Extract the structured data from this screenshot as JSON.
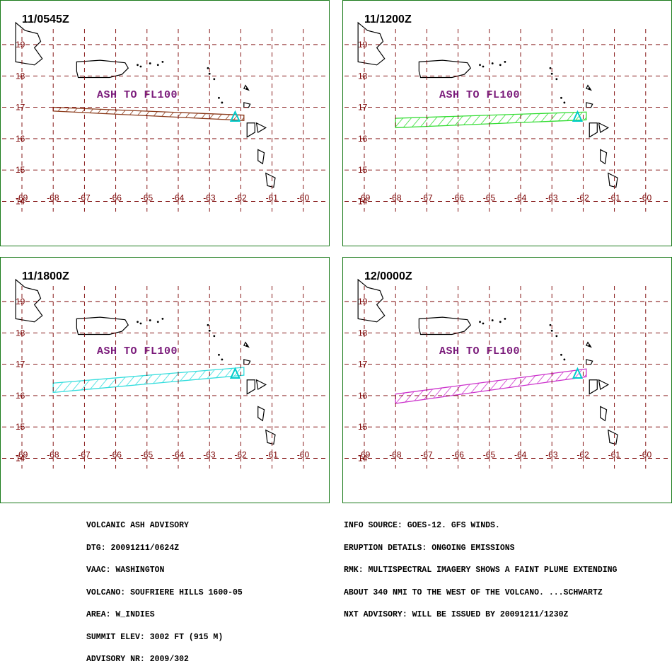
{
  "panels": [
    {
      "time": "11/0545Z",
      "ash_label": "ASH TO FL100",
      "plume_color": "#8b3a1a",
      "plume": [
        [
          -68.0,
          17.0
        ],
        [
          -68.0,
          16.88
        ],
        [
          -61.9,
          16.58
        ],
        [
          -61.9,
          16.75
        ]
      ]
    },
    {
      "time": "11/1200Z",
      "ash_label": "ASH TO FL100",
      "plume_color": "#33dd33",
      "plume": [
        [
          -68.0,
          16.65
        ],
        [
          -68.0,
          16.35
        ],
        [
          -61.9,
          16.6
        ],
        [
          -61.9,
          16.85
        ]
      ]
    },
    {
      "time": "11/1800Z",
      "ash_label": "ASH TO FL100",
      "plume_color": "#33dddd",
      "plume": [
        [
          -68.0,
          16.4
        ],
        [
          -68.0,
          16.1
        ],
        [
          -61.9,
          16.65
        ],
        [
          -61.9,
          16.9
        ]
      ]
    },
    {
      "time": "12/0000Z",
      "ash_label": "ASH TO FL100",
      "plume_color": "#cc33cc",
      "plume": [
        [
          -68.0,
          16.05
        ],
        [
          -68.0,
          15.75
        ],
        [
          -61.9,
          16.6
        ],
        [
          -61.9,
          16.85
        ]
      ]
    }
  ],
  "grid": {
    "lon_labels": [
      "-69",
      "-68",
      "-67",
      "-66",
      "-65",
      "-64",
      "-63",
      "-62",
      "-61",
      "-60"
    ],
    "lat_labels": [
      "19",
      "18",
      "17",
      "16",
      "15",
      "14"
    ],
    "grid_color": "#7a0000",
    "coast_color": "#000000",
    "volcano_color": "#00cccc"
  },
  "footer_left": [
    "VOLCANIC ASH ADVISORY",
    "DTG: 20091211/0624Z",
    "VAAC: WASHINGTON",
    "VOLCANO: SOUFRIERE HILLS 1600-05",
    "AREA: W_INDIES",
    "SUMMIT ELEV: 3002 FT (915 M)",
    "ADVISORY NR: 2009/302"
  ],
  "footer_right": [
    "INFO SOURCE: GOES-12. GFS WINDS.",
    "ERUPTION DETAILS: ONGOING EMISSIONS",
    "RMK: MULTISPECTRAL IMAGERY SHOWS A FAINT PLUME EXTENDING",
    "ABOUT 340 NMI TO THE WEST OF THE VOLCANO. ...SCHWARTZ",
    "NXT ADVISORY: WILL BE ISSUED BY 20091211/1230Z"
  ]
}
